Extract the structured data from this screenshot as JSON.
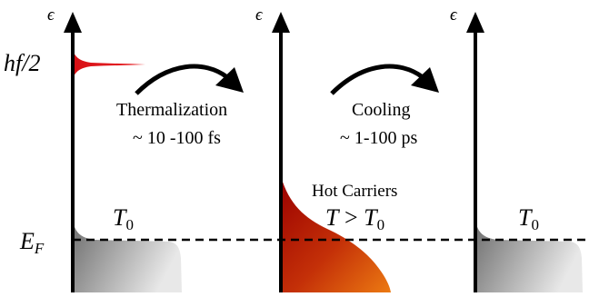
{
  "axes": {
    "energy_symbol": "ϵ"
  },
  "labels": {
    "excitation_energy": "hf/2",
    "fermi_level": "E_F",
    "stage1_temperature": "T_0",
    "stage2_temperature": "T > T_0",
    "stage3_temperature": "T_0",
    "hot_carriers": "Hot Carriers"
  },
  "processes": {
    "thermalization": {
      "name": "Thermalization",
      "timescale": "~ 10 -100 fs"
    },
    "cooling": {
      "name": "Cooling",
      "timescale": "~ 1-100 ps"
    }
  },
  "colors": {
    "excited_peak": "#e0161b",
    "hot_carrier_top": "#9a0000",
    "hot_carrier_bottom": "#e86a10",
    "equilibrium_dark": "#6a6a6a",
    "equilibrium_light": "#e6e6e6"
  }
}
